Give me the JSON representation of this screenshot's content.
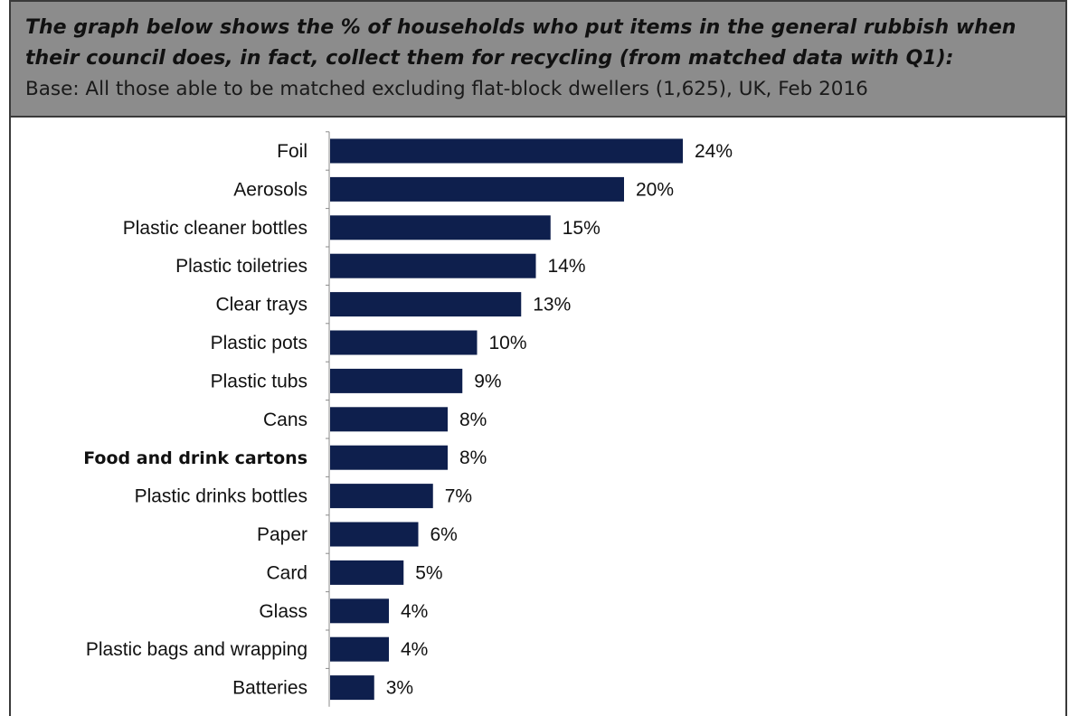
{
  "header": {
    "title_line1": "The graph below shows the % of households who put items in the general rubbish when",
    "title_line2": "their council does, in fact, collect them for recycling (from matched data with Q1):",
    "subtitle": "Base: All those able to be matched excluding flat-block dwellers (1,625), UK, Feb 2016"
  },
  "chart_data": {
    "type": "bar",
    "orientation": "horizontal",
    "categories": [
      "Foil",
      "Aerosols",
      "Plastic cleaner bottles",
      "Plastic toiletries",
      "Clear trays",
      "Plastic pots",
      "Plastic tubs",
      "Cans",
      "Food and drink cartons",
      "Plastic drinks bottles",
      "Paper",
      "Card",
      "Glass",
      "Plastic bags and wrapping",
      "Batteries"
    ],
    "values": [
      24,
      20,
      15,
      14,
      13,
      10,
      9,
      8,
      8,
      7,
      6,
      5,
      4,
      4,
      3
    ],
    "value_labels": [
      "24%",
      "20%",
      "15%",
      "14%",
      "13%",
      "10%",
      "9%",
      "8%",
      "8%",
      "7%",
      "6%",
      "5%",
      "4%",
      "4%",
      "3%"
    ],
    "unit": "%",
    "bar_color": "#0e1f4d",
    "grid": false,
    "legend": "none"
  }
}
